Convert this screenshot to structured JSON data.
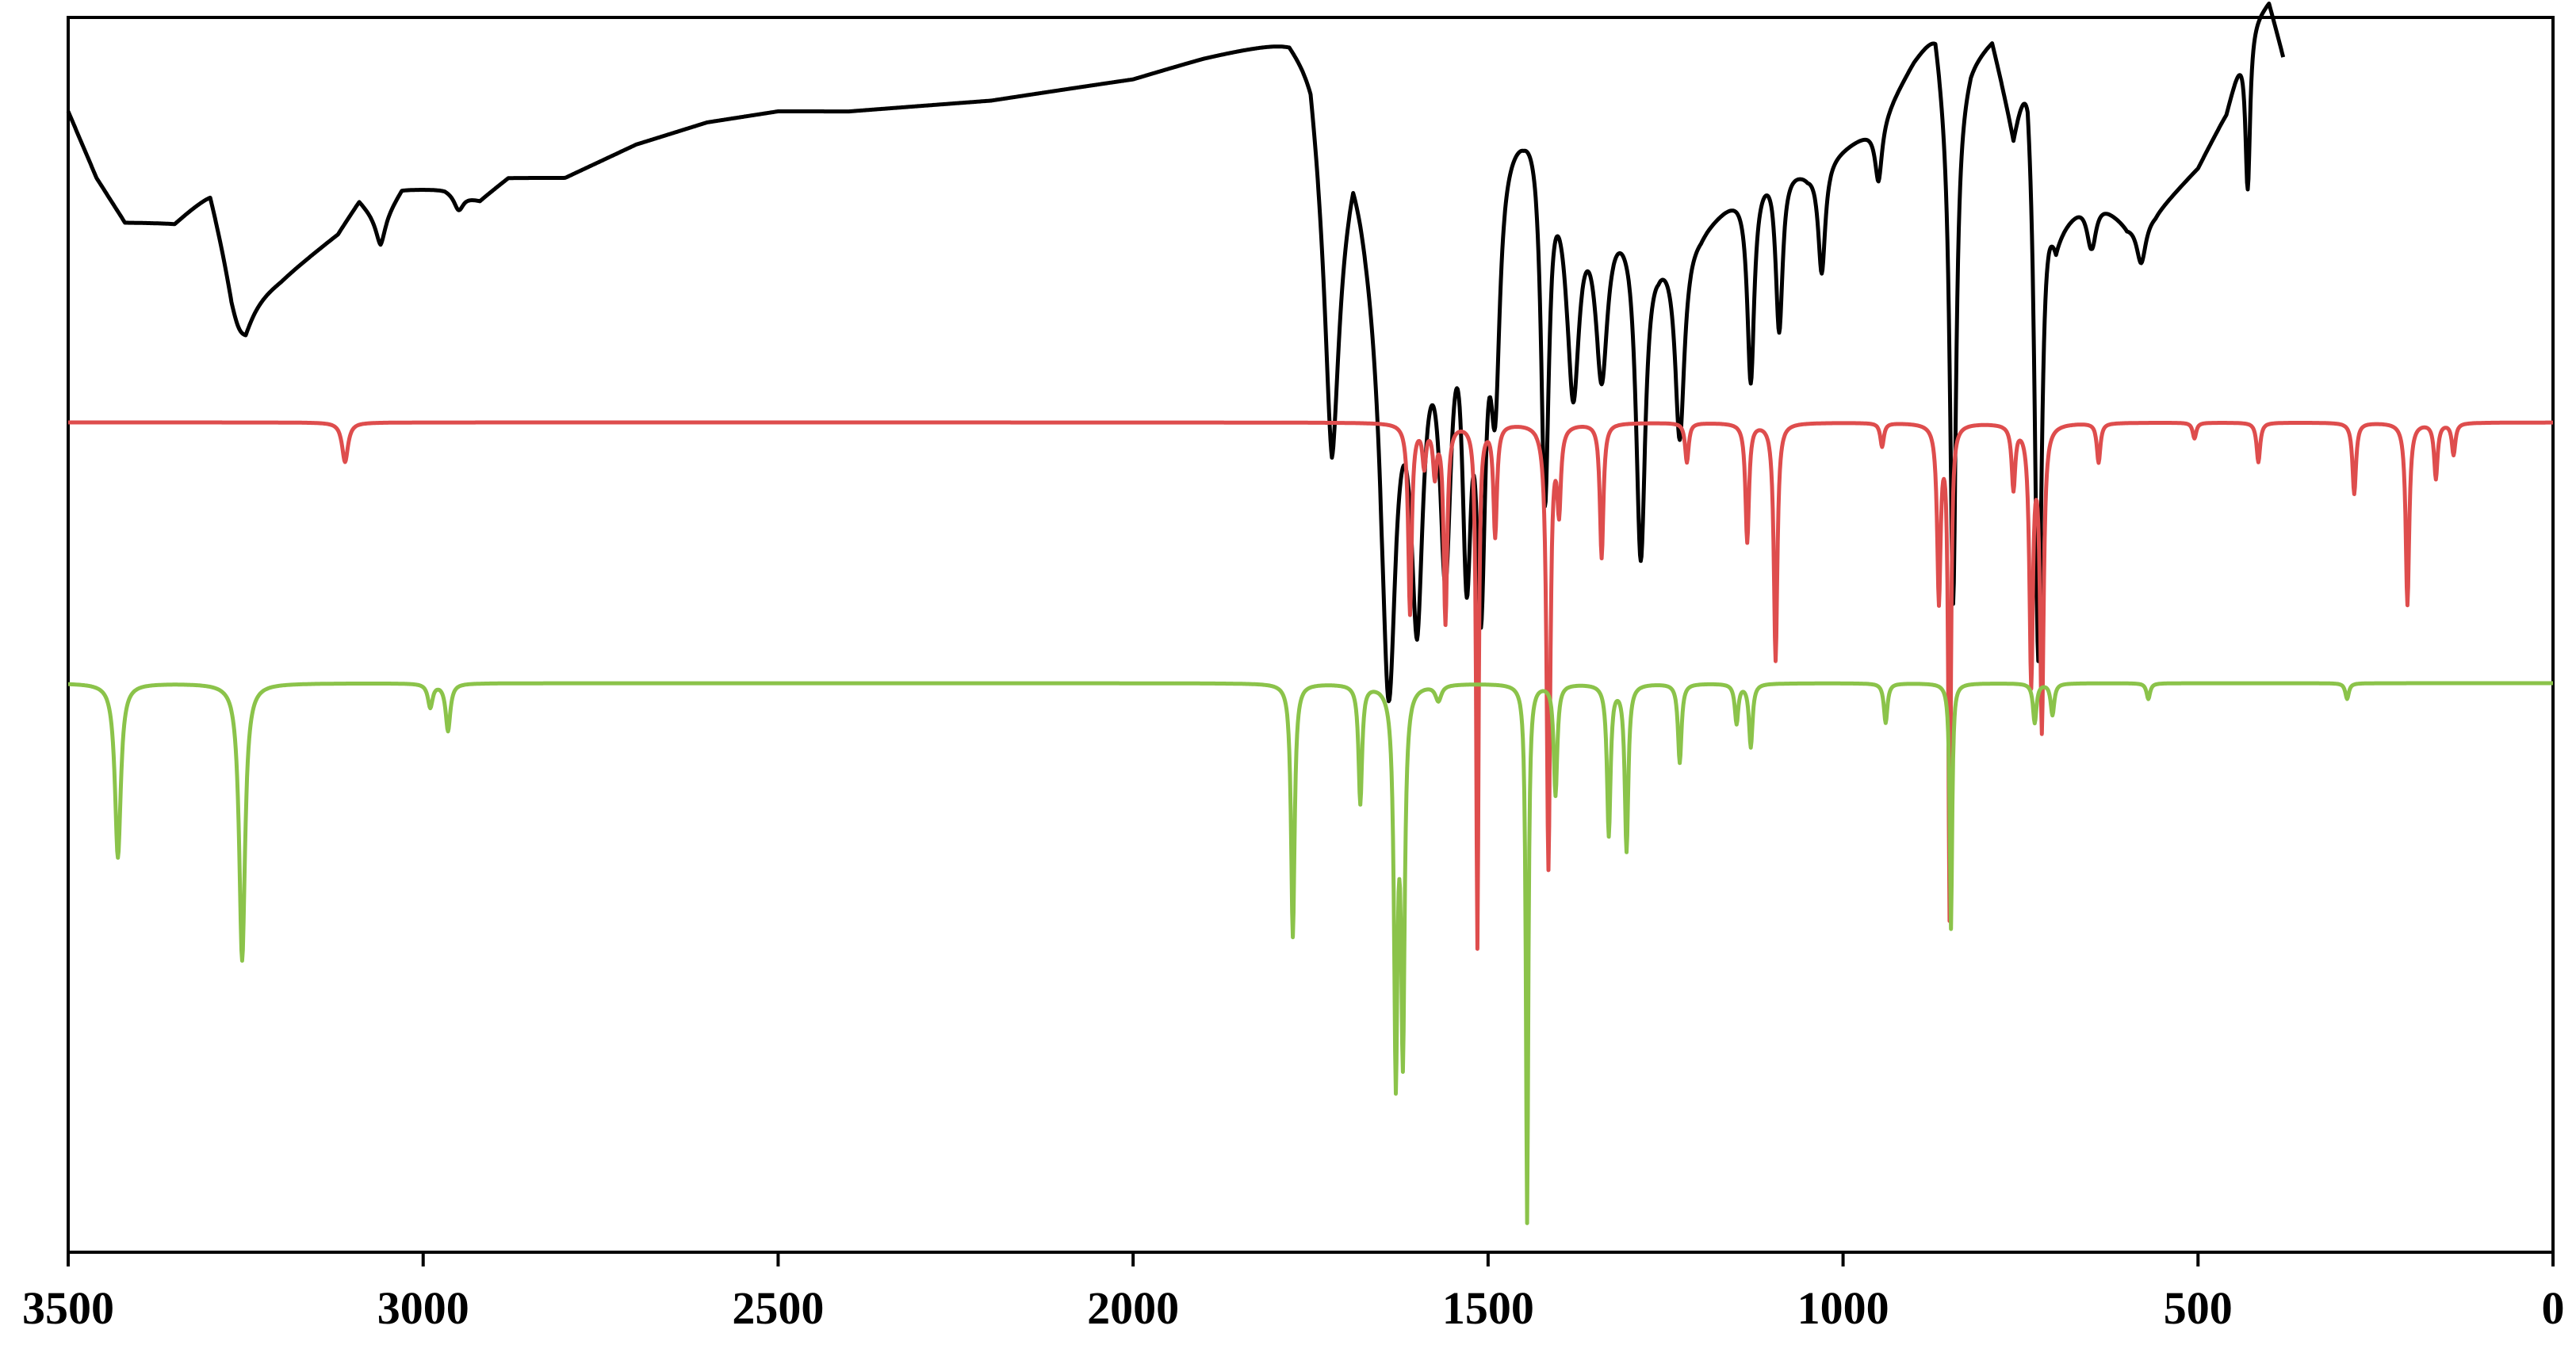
{
  "chart_data": {
    "type": "line",
    "title": "",
    "xlabel": "",
    "ylabel": "",
    "x_reversed": true,
    "xlim": [
      3500,
      0
    ],
    "x_ticks": [
      3500,
      3000,
      2500,
      2000,
      1500,
      1000,
      500,
      0
    ],
    "x_tick_labels": [
      "3500",
      "3000",
      "2500",
      "2000",
      "1500",
      "1000",
      "500",
      "0"
    ],
    "y_axis_scale": "arbitrary intensity, spectra vertically offset",
    "grid": false,
    "legend": "none",
    "series": [
      {
        "color": "#000000",
        "style": "experimental",
        "baseline_points": [
          [
            3500,
            0.05
          ],
          [
            3460,
            0.11
          ],
          [
            3420,
            0.15
          ],
          [
            3350,
            0.15
          ],
          [
            3300,
            0.12
          ],
          [
            3270,
            0.19
          ],
          [
            3250,
            0.22
          ],
          [
            3200,
            0.2
          ],
          [
            3120,
            0.16
          ],
          [
            3090,
            0.13
          ],
          [
            3060,
            0.15
          ],
          [
            3030,
            0.12
          ],
          [
            2970,
            0.12
          ],
          [
            2920,
            0.13
          ],
          [
            2880,
            0.11
          ],
          [
            2800,
            0.11
          ],
          [
            2700,
            0.08
          ],
          [
            2600,
            0.06
          ],
          [
            2500,
            0.05
          ],
          [
            2400,
            0.05
          ],
          [
            2200,
            0.04
          ],
          [
            2000,
            0.02
          ],
          [
            1900,
            0.0
          ],
          [
            1780,
            -0.02
          ],
          [
            1750,
            0.0
          ],
          [
            1720,
            0.15
          ],
          [
            1690,
            0.07
          ],
          [
            1680,
            0.1
          ],
          [
            1650,
            0.2
          ],
          [
            1600,
            0.22
          ],
          [
            1540,
            0.1
          ],
          [
            1480,
            0.05
          ],
          [
            1450,
            0.04
          ],
          [
            1425,
            0.02
          ],
          [
            1390,
            0.1
          ],
          [
            1350,
            0.12
          ],
          [
            1300,
            0.13
          ],
          [
            1260,
            0.16
          ],
          [
            1200,
            0.15
          ],
          [
            1150,
            0.12
          ],
          [
            1100,
            0.09
          ],
          [
            1050,
            0.1
          ],
          [
            1000,
            0.08
          ],
          [
            950,
            0.06
          ],
          [
            900,
            0.0
          ],
          [
            870,
            -0.03
          ],
          [
            850,
            0.05
          ],
          [
            820,
            0.0
          ],
          [
            790,
            -0.02
          ],
          [
            760,
            0.06
          ],
          [
            740,
            -0.02
          ],
          [
            700,
            0.15
          ],
          [
            650,
            0.12
          ],
          [
            600,
            0.15
          ],
          [
            560,
            0.14
          ],
          [
            500,
            0.1
          ],
          [
            460,
            0.05
          ],
          [
            430,
            -0.03
          ],
          [
            400,
            -0.05
          ],
          [
            380,
            0.0
          ]
        ],
        "peaks": [
          {
            "x": 3260,
            "depth": 0.04,
            "width": 20
          },
          {
            "x": 3060,
            "depth": 0.02,
            "width": 8
          },
          {
            "x": 2950,
            "depth": 0.015,
            "width": 8
          },
          {
            "x": 1720,
            "depth": 0.2,
            "width": 12
          },
          {
            "x": 1640,
            "depth": 0.35,
            "width": 12
          },
          {
            "x": 1600,
            "depth": 0.25,
            "width": 10
          },
          {
            "x": 1560,
            "depth": 0.28,
            "width": 10
          },
          {
            "x": 1530,
            "depth": 0.3,
            "width": 8
          },
          {
            "x": 1510,
            "depth": 0.35,
            "width": 8
          },
          {
            "x": 1490,
            "depth": 0.2,
            "width": 8
          },
          {
            "x": 1420,
            "depth": 0.35,
            "width": 7
          },
          {
            "x": 1380,
            "depth": 0.18,
            "width": 10
          },
          {
            "x": 1340,
            "depth": 0.15,
            "width": 10
          },
          {
            "x": 1285,
            "depth": 0.3,
            "width": 8
          },
          {
            "x": 1230,
            "depth": 0.18,
            "width": 8
          },
          {
            "x": 1130,
            "depth": 0.18,
            "width": 6
          },
          {
            "x": 1090,
            "depth": 0.15,
            "width": 6
          },
          {
            "x": 1030,
            "depth": 0.1,
            "width": 6
          },
          {
            "x": 950,
            "depth": 0.05,
            "width": 6
          },
          {
            "x": 845,
            "depth": 0.45,
            "width": 5
          },
          {
            "x": 725,
            "depth": 0.5,
            "width": 6
          },
          {
            "x": 650,
            "depth": 0.05,
            "width": 8
          },
          {
            "x": 580,
            "depth": 0.04,
            "width": 8
          },
          {
            "x": 430,
            "depth": 0.15,
            "width": 4
          }
        ]
      },
      {
        "color": "#de4d4d",
        "style": "computed",
        "baseline": 0.0,
        "peaks": [
          {
            "x": 3110,
            "depth": 0.05,
            "width": 5
          },
          {
            "x": 1610,
            "depth": 0.24,
            "width": 3
          },
          {
            "x": 1590,
            "depth": 0.05,
            "width": 3
          },
          {
            "x": 1575,
            "depth": 0.06,
            "width": 3
          },
          {
            "x": 1560,
            "depth": 0.25,
            "width": 3
          },
          {
            "x": 1515,
            "depth": 0.66,
            "width": 2
          },
          {
            "x": 1490,
            "depth": 0.14,
            "width": 3
          },
          {
            "x": 1415,
            "depth": 0.56,
            "width": 3
          },
          {
            "x": 1400,
            "depth": 0.1,
            "width": 3
          },
          {
            "x": 1340,
            "depth": 0.17,
            "width": 3
          },
          {
            "x": 1220,
            "depth": 0.05,
            "width": 3
          },
          {
            "x": 1135,
            "depth": 0.15,
            "width": 3
          },
          {
            "x": 1095,
            "depth": 0.3,
            "width": 3
          },
          {
            "x": 945,
            "depth": 0.03,
            "width": 3
          },
          {
            "x": 865,
            "depth": 0.22,
            "width": 3
          },
          {
            "x": 850,
            "depth": 0.62,
            "width": 2
          },
          {
            "x": 760,
            "depth": 0.08,
            "width": 3
          },
          {
            "x": 735,
            "depth": 0.32,
            "width": 3
          },
          {
            "x": 720,
            "depth": 0.38,
            "width": 3
          },
          {
            "x": 640,
            "depth": 0.05,
            "width": 3
          },
          {
            "x": 505,
            "depth": 0.02,
            "width": 3
          },
          {
            "x": 415,
            "depth": 0.05,
            "width": 3
          },
          {
            "x": 280,
            "depth": 0.09,
            "width": 3
          },
          {
            "x": 205,
            "depth": 0.23,
            "width": 3
          },
          {
            "x": 165,
            "depth": 0.07,
            "width": 3
          },
          {
            "x": 140,
            "depth": 0.04,
            "width": 3
          }
        ]
      },
      {
        "color": "#8bc34a",
        "style": "computed",
        "baseline": 0.0,
        "peaks": [
          {
            "x": 3430,
            "depth": 0.22,
            "width": 5
          },
          {
            "x": 3255,
            "depth": 0.35,
            "width": 5
          },
          {
            "x": 2990,
            "depth": 0.03,
            "width": 4
          },
          {
            "x": 2965,
            "depth": 0.06,
            "width": 4
          },
          {
            "x": 1775,
            "depth": 0.32,
            "width": 3
          },
          {
            "x": 1680,
            "depth": 0.15,
            "width": 3
          },
          {
            "x": 1630,
            "depth": 0.48,
            "width": 3
          },
          {
            "x": 1620,
            "depth": 0.45,
            "width": 3
          },
          {
            "x": 1570,
            "depth": 0.02,
            "width": 5
          },
          {
            "x": 1445,
            "depth": 0.68,
            "width": 2
          },
          {
            "x": 1405,
            "depth": 0.14,
            "width": 3
          },
          {
            "x": 1330,
            "depth": 0.19,
            "width": 3
          },
          {
            "x": 1305,
            "depth": 0.21,
            "width": 3
          },
          {
            "x": 1230,
            "depth": 0.1,
            "width": 3
          },
          {
            "x": 1150,
            "depth": 0.05,
            "width": 3
          },
          {
            "x": 1130,
            "depth": 0.08,
            "width": 3
          },
          {
            "x": 940,
            "depth": 0.05,
            "width": 3
          },
          {
            "x": 848,
            "depth": 0.31,
            "width": 2
          },
          {
            "x": 730,
            "depth": 0.05,
            "width": 3
          },
          {
            "x": 705,
            "depth": 0.04,
            "width": 3
          },
          {
            "x": 570,
            "depth": 0.02,
            "width": 3
          },
          {
            "x": 290,
            "depth": 0.02,
            "width": 3
          }
        ]
      }
    ]
  }
}
